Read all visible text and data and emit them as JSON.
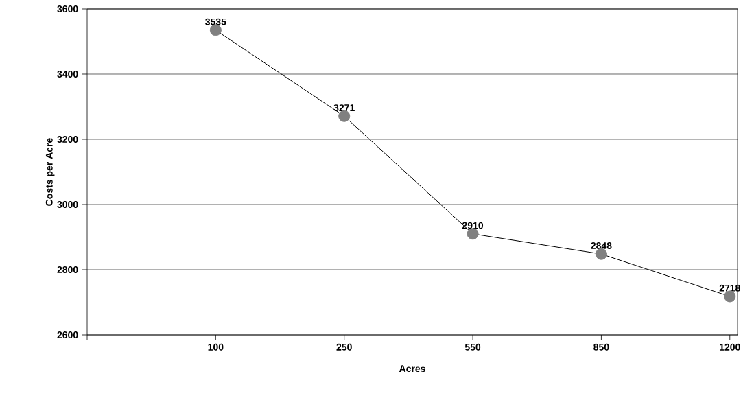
{
  "chart_data": {
    "type": "line",
    "xlabel": "Acres",
    "ylabel": "Costs per Acre",
    "categories": [
      "100",
      "250",
      "550",
      "850",
      "1200"
    ],
    "series": [
      {
        "color": "#808080",
        "values": [
          3535,
          3271,
          2910,
          2848,
          2718
        ]
      }
    ],
    "ylim": [
      2600,
      3600
    ],
    "yticks": [
      2600,
      2800,
      3000,
      3200,
      3400,
      3600
    ],
    "grid": "y",
    "legend": false,
    "marker": "circle",
    "line_style": "solid",
    "data_labels": true
  }
}
